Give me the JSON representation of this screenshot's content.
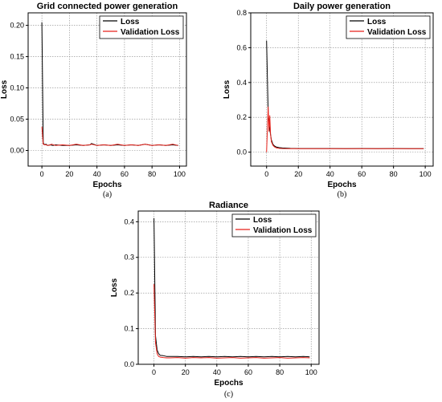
{
  "chart_data": [
    {
      "id": "a",
      "type": "line",
      "title": "Grid connected power generation",
      "xlabel": "Epochs",
      "ylabel": "Loss",
      "caption": "(a)",
      "xlim": [
        -10,
        105
      ],
      "ylim": [
        -0.025,
        0.22
      ],
      "xticks": [
        0,
        20,
        40,
        60,
        80,
        100
      ],
      "yticks": [
        0.0,
        0.05,
        0.1,
        0.15,
        0.2
      ],
      "ytick_labels": [
        "0.00",
        "0.05",
        "0.10",
        "0.15",
        "0.20"
      ],
      "grid": true,
      "legend_position": "top-right",
      "series": [
        {
          "name": "Loss",
          "color": "#000000",
          "x": [
            0,
            1,
            2,
            3,
            4,
            6,
            8,
            10,
            15,
            20,
            25,
            30,
            35,
            36,
            40,
            45,
            50,
            55,
            60,
            65,
            70,
            75,
            80,
            85,
            90,
            95,
            99
          ],
          "y": [
            0.205,
            0.012,
            0.009,
            0.01,
            0.008,
            0.009,
            0.008,
            0.009,
            0.008,
            0.008,
            0.009,
            0.008,
            0.009,
            0.011,
            0.008,
            0.009,
            0.008,
            0.009,
            0.008,
            0.009,
            0.008,
            0.01,
            0.008,
            0.009,
            0.008,
            0.009,
            0.008
          ]
        },
        {
          "name": "Validation Loss",
          "color": "#e8221b",
          "x": [
            0,
            1,
            2,
            3,
            5,
            7,
            10,
            15,
            20,
            25,
            30,
            35,
            36,
            40,
            45,
            50,
            55,
            60,
            65,
            70,
            75,
            80,
            85,
            90,
            95,
            99
          ],
          "y": [
            0.038,
            0.01,
            0.009,
            0.009,
            0.008,
            0.01,
            0.008,
            0.009,
            0.008,
            0.01,
            0.008,
            0.009,
            0.01,
            0.008,
            0.009,
            0.008,
            0.01,
            0.008,
            0.009,
            0.008,
            0.01,
            0.008,
            0.009,
            0.008,
            0.01,
            0.008
          ]
        }
      ]
    },
    {
      "id": "b",
      "type": "line",
      "title": "Daily power generation",
      "xlabel": "Epochs",
      "ylabel": "Loss",
      "caption": "(b)",
      "xlim": [
        -10,
        105
      ],
      "ylim": [
        -0.08,
        0.8
      ],
      "xticks": [
        0,
        20,
        40,
        60,
        80,
        100
      ],
      "yticks": [
        0.0,
        0.2,
        0.4,
        0.6,
        0.8
      ],
      "ytick_labels": [
        "0.0",
        "0.2",
        "0.4",
        "0.6",
        "0.8"
      ],
      "grid": true,
      "legend_position": "top-right",
      "series": [
        {
          "name": "Loss",
          "color": "#000000",
          "x": [
            0,
            1,
            2,
            3,
            4,
            5,
            6,
            8,
            10,
            15,
            20,
            30,
            40,
            50,
            60,
            70,
            80,
            90,
            99
          ],
          "y": [
            0.64,
            0.22,
            0.13,
            0.07,
            0.045,
            0.035,
            0.03,
            0.026,
            0.024,
            0.022,
            0.021,
            0.021,
            0.021,
            0.02,
            0.021,
            0.02,
            0.021,
            0.02,
            0.02
          ]
        },
        {
          "name": "Validation Loss",
          "color": "#e8221b",
          "x": [
            0,
            1,
            1.5,
            2,
            2.5,
            3,
            4,
            5,
            6,
            8,
            10,
            15,
            20,
            30,
            40,
            50,
            60,
            70,
            80,
            90,
            99
          ],
          "y": [
            0.0,
            0.26,
            0.12,
            0.21,
            0.1,
            0.06,
            0.04,
            0.03,
            0.025,
            0.022,
            0.021,
            0.02,
            0.02,
            0.02,
            0.02,
            0.02,
            0.02,
            0.02,
            0.02,
            0.02,
            0.02
          ]
        }
      ]
    },
    {
      "id": "c",
      "type": "line",
      "title": "Radiance",
      "xlabel": "Epochs",
      "ylabel": "Loss",
      "caption": "(c)",
      "xlim": [
        -10,
        105
      ],
      "ylim": [
        0.0,
        0.43
      ],
      "xticks": [
        0,
        20,
        40,
        60,
        80,
        100
      ],
      "yticks": [
        0.0,
        0.1,
        0.2,
        0.3,
        0.4
      ],
      "ytick_labels": [
        "0.0",
        "0.1",
        "0.2",
        "0.3",
        "0.4"
      ],
      "grid": true,
      "legend_position": "top-right",
      "series": [
        {
          "name": "Loss",
          "color": "#000000",
          "x": [
            0,
            1,
            2,
            3,
            4,
            6,
            8,
            10,
            15,
            20,
            25,
            30,
            35,
            40,
            45,
            50,
            55,
            60,
            65,
            70,
            75,
            80,
            85,
            90,
            95,
            99
          ],
          "y": [
            0.41,
            0.08,
            0.04,
            0.03,
            0.025,
            0.024,
            0.022,
            0.022,
            0.022,
            0.021,
            0.022,
            0.021,
            0.022,
            0.021,
            0.022,
            0.021,
            0.022,
            0.021,
            0.022,
            0.021,
            0.022,
            0.021,
            0.022,
            0.021,
            0.022,
            0.021
          ]
        },
        {
          "name": "Validation Loss",
          "color": "#e8221b",
          "x": [
            0,
            1,
            2,
            3,
            4,
            6,
            8,
            10,
            15,
            20,
            25,
            30,
            35,
            40,
            45,
            50,
            55,
            60,
            65,
            70,
            75,
            80,
            85,
            90,
            95,
            99
          ],
          "y": [
            0.225,
            0.06,
            0.03,
            0.022,
            0.02,
            0.019,
            0.018,
            0.018,
            0.019,
            0.017,
            0.019,
            0.018,
            0.019,
            0.017,
            0.018,
            0.019,
            0.017,
            0.018,
            0.019,
            0.017,
            0.018,
            0.019,
            0.017,
            0.018,
            0.019,
            0.018
          ]
        }
      ]
    }
  ]
}
